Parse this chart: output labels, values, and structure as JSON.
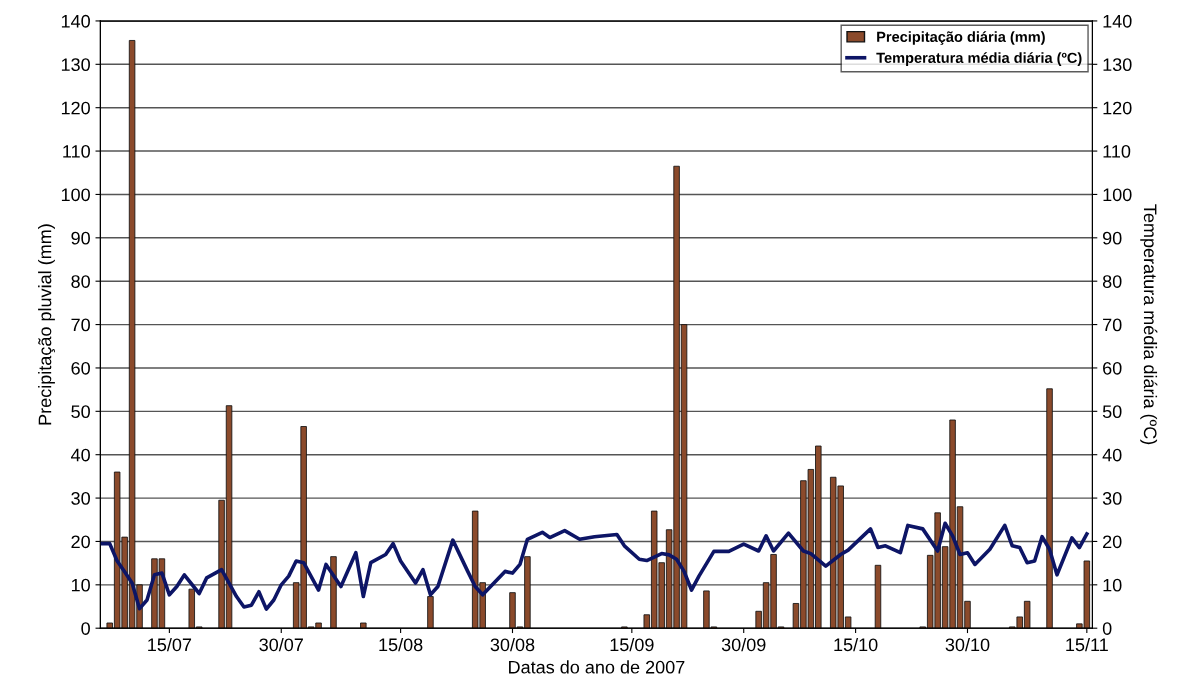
{
  "chart_data": {
    "type": "bar",
    "xlabel": "Datas do ano de 2007",
    "ylabel": "Precipitação pluvial (mm)",
    "y2label": "Temperatura média diária (ºC)",
    "xlim": [
      "2007-07-05T18:00",
      "2007-11-15T18:00"
    ],
    "xticks": [
      {
        "value": "2007-07-15",
        "label": "15/07"
      },
      {
        "value": "2007-07-30",
        "label": "30/07"
      },
      {
        "value": "2007-08-15",
        "label": "15/08"
      },
      {
        "value": "2007-08-30",
        "label": "30/08"
      },
      {
        "value": "2007-09-15",
        "label": "15/09"
      },
      {
        "value": "2007-09-30",
        "label": "30/09"
      },
      {
        "value": "2007-10-15",
        "label": "15/10"
      },
      {
        "value": "2007-10-30",
        "label": "30/10"
      },
      {
        "value": "2007-11-15",
        "label": "15/11"
      }
    ],
    "ylim": [
      0,
      140
    ],
    "yticks": [
      0,
      10,
      20,
      30,
      40,
      50,
      60,
      70,
      80,
      90,
      100,
      110,
      120,
      130,
      140
    ],
    "y2lim": [
      0,
      140
    ],
    "y2ticks": [
      0,
      10,
      20,
      30,
      40,
      50,
      60,
      70,
      80,
      90,
      100,
      110,
      120,
      130,
      140
    ],
    "grid": "y",
    "legend": "top right",
    "series": [
      {
        "name": "Precipitação diária (mm)",
        "color": "#8b4a2b",
        "x": [
          "2007-07-07",
          "2007-07-08",
          "2007-07-09",
          "2007-07-10",
          "2007-07-11",
          "2007-07-13",
          "2007-07-14",
          "2007-07-18",
          "2007-07-19",
          "2007-07-22",
          "2007-07-23",
          "2007-08-01",
          "2007-08-02",
          "2007-08-03",
          "2007-08-04",
          "2007-08-06",
          "2007-08-10",
          "2007-08-19",
          "2007-08-25",
          "2007-08-26",
          "2007-08-30",
          "2007-08-31",
          "2007-09-01",
          "2007-09-14",
          "2007-09-17",
          "2007-09-18",
          "2007-09-19",
          "2007-09-20",
          "2007-09-21",
          "2007-09-22",
          "2007-09-25",
          "2007-09-26",
          "2007-10-02",
          "2007-10-03",
          "2007-10-04",
          "2007-10-05",
          "2007-10-07",
          "2007-10-08",
          "2007-10-09",
          "2007-10-10",
          "2007-10-12",
          "2007-10-13",
          "2007-10-14",
          "2007-10-18",
          "2007-10-24",
          "2007-10-25",
          "2007-10-26",
          "2007-10-27",
          "2007-10-28",
          "2007-10-29",
          "2007-10-30",
          "2007-11-05",
          "2007-11-06",
          "2007-11-07",
          "2007-11-10",
          "2007-11-14",
          "2007-11-15"
        ],
        "values": [
          1.2,
          36,
          21,
          135.5,
          10,
          16,
          16,
          9,
          0.3,
          29.5,
          51.3,
          10.5,
          46.5,
          0.3,
          1.2,
          16.5,
          1.2,
          7.3,
          27,
          10.5,
          8.2,
          0.3,
          16.5,
          0.3,
          3.1,
          27,
          15.1,
          22.7,
          106.5,
          70,
          8.6,
          0.3,
          3.9,
          10.5,
          17,
          0.3,
          5.7,
          34,
          36.6,
          42,
          34.8,
          32.8,
          2.6,
          14.5,
          0.3,
          16.8,
          26.6,
          18.8,
          48,
          28,
          6.2,
          0.3,
          2.6,
          6.2,
          55.2,
          1.0,
          15.5
        ]
      },
      {
        "name": "Temperatura média diária (ºC)",
        "type": "line",
        "axis": "y2",
        "color": "#0d1566",
        "x": [
          "2007-07-06",
          "2007-07-07",
          "2007-07-08",
          "2007-07-09",
          "2007-07-10",
          "2007-07-11",
          "2007-07-12",
          "2007-07-13",
          "2007-07-14",
          "2007-07-15",
          "2007-07-16",
          "2007-07-17",
          "2007-07-19",
          "2007-07-20",
          "2007-07-22",
          "2007-07-23",
          "2007-07-24",
          "2007-07-25",
          "2007-07-26",
          "2007-07-27",
          "2007-07-28",
          "2007-07-29",
          "2007-07-30",
          "2007-07-31",
          "2007-08-01",
          "2007-08-02",
          "2007-08-04",
          "2007-08-05",
          "2007-08-07",
          "2007-08-09",
          "2007-08-10",
          "2007-08-11",
          "2007-08-13",
          "2007-08-14",
          "2007-08-15",
          "2007-08-17",
          "2007-08-18",
          "2007-08-19",
          "2007-08-20",
          "2007-08-22",
          "2007-08-24",
          "2007-08-25",
          "2007-08-26",
          "2007-08-29",
          "2007-08-30",
          "2007-08-31",
          "2007-09-01",
          "2007-09-03",
          "2007-09-04",
          "2007-09-06",
          "2007-09-08",
          "2007-09-10",
          "2007-09-13",
          "2007-09-14",
          "2007-09-16",
          "2007-09-17",
          "2007-09-19",
          "2007-09-20",
          "2007-09-21",
          "2007-09-22",
          "2007-09-23",
          "2007-09-24",
          "2007-09-26",
          "2007-09-28",
          "2007-09-30",
          "2007-10-02",
          "2007-10-03",
          "2007-10-04",
          "2007-10-06",
          "2007-10-08",
          "2007-10-09",
          "2007-10-11",
          "2007-10-13",
          "2007-10-14",
          "2007-10-17",
          "2007-10-18",
          "2007-10-19",
          "2007-10-21",
          "2007-10-22",
          "2007-10-24",
          "2007-10-26",
          "2007-10-27",
          "2007-10-28",
          "2007-10-29",
          "2007-10-30",
          "2007-10-31",
          "2007-11-02",
          "2007-11-04",
          "2007-11-05",
          "2007-11-06",
          "2007-11-07",
          "2007-11-08",
          "2007-11-09",
          "2007-11-10",
          "2007-11-11",
          "2007-11-13",
          "2007-11-14",
          "2007-11-15"
        ],
        "values": [
          19.5,
          19.5,
          15.5,
          13,
          10.4,
          4.5,
          6.5,
          12.3,
          12.7,
          7.7,
          9.6,
          12.3,
          8,
          11.6,
          13.5,
          10.4,
          7.3,
          4.9,
          5.3,
          8.4,
          4.4,
          6.5,
          10,
          12,
          15.5,
          15.1,
          8.8,
          14.7,
          9.6,
          17.4,
          7.3,
          15.1,
          17,
          19.5,
          15.5,
          10.4,
          13.5,
          7.7,
          9.6,
          20.3,
          13.1,
          9.6,
          7.7,
          13.1,
          12.7,
          14.7,
          20.5,
          22.1,
          20.9,
          22.5,
          20.5,
          21.1,
          21.6,
          19,
          15.9,
          15.6,
          17.2,
          16.9,
          15.9,
          13.1,
          8.8,
          12,
          17.7,
          17.7,
          19.4,
          17.8,
          21.3,
          17.8,
          21.9,
          17.8,
          17.2,
          14.3,
          17,
          18,
          22.9,
          18.6,
          19,
          17.4,
          23.7,
          22.9,
          17.8,
          24.2,
          21.3,
          17,
          17.4,
          14.7,
          18.2,
          23.7,
          19,
          18.6,
          15.1,
          15.5,
          21.1,
          18.2,
          12.3,
          20.8,
          18.6,
          21.7
        ]
      }
    ]
  }
}
